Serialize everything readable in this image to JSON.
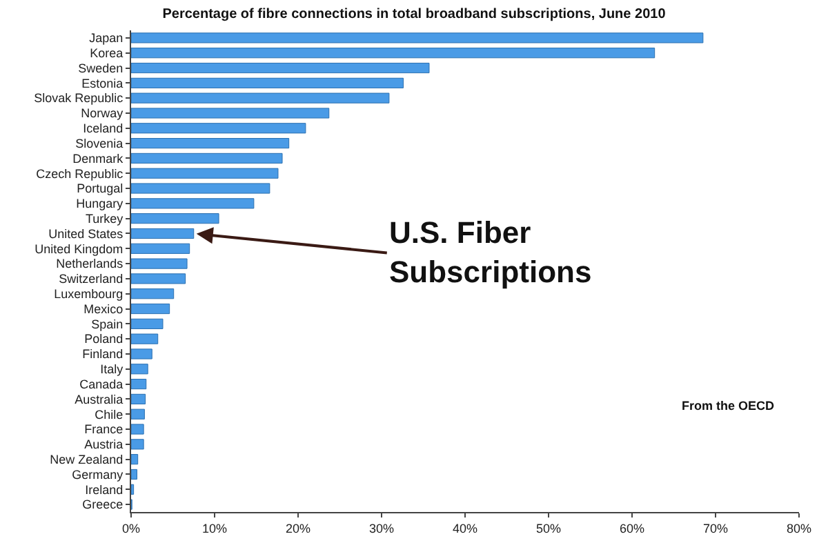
{
  "chart_data": {
    "type": "bar",
    "orientation": "horizontal",
    "title": "Percentage of fibre connections in total broadband subscriptions, June 2010",
    "categories": [
      "Japan",
      "Korea",
      "Sweden",
      "Estonia",
      "Slovak Republic",
      "Norway",
      "Iceland",
      "Slovenia",
      "Denmark",
      "Czech Republic",
      "Portugal",
      "Hungary",
      "Turkey",
      "United States",
      "United Kingdom",
      "Netherlands",
      "Switzerland",
      "Luxembourg",
      "Mexico",
      "Spain",
      "Poland",
      "Finland",
      "Italy",
      "Canada",
      "Australia",
      "Chile",
      "France",
      "Austria",
      "New Zealand",
      "Germany",
      "Ireland",
      "Greece"
    ],
    "values": [
      68.5,
      62.7,
      35.7,
      32.6,
      30.9,
      23.7,
      20.9,
      18.9,
      18.1,
      17.6,
      16.6,
      14.7,
      10.5,
      7.5,
      7.0,
      6.7,
      6.5,
      5.1,
      4.6,
      3.8,
      3.2,
      2.5,
      2.0,
      1.8,
      1.7,
      1.6,
      1.5,
      1.5,
      0.8,
      0.7,
      0.3,
      0.1
    ],
    "color": "#4a9be6",
    "xlim": [
      0,
      80
    ],
    "xticks": [
      {
        "value": 0,
        "label": "0%"
      },
      {
        "value": 10,
        "label": "10%"
      },
      {
        "value": 20,
        "label": "20%"
      },
      {
        "value": 30,
        "label": "30%"
      },
      {
        "value": 40,
        "label": "40%"
      },
      {
        "value": 50,
        "label": "50%"
      },
      {
        "value": 60,
        "label": "60%"
      },
      {
        "value": 70,
        "label": "70%"
      },
      {
        "value": 80,
        "label": "80%"
      }
    ],
    "annotations": [
      {
        "text": "U.S. Fiber\nSubscriptions",
        "x": 7.5,
        "y": "United States"
      },
      "From the OECD"
    ],
    "legend": false
  }
}
